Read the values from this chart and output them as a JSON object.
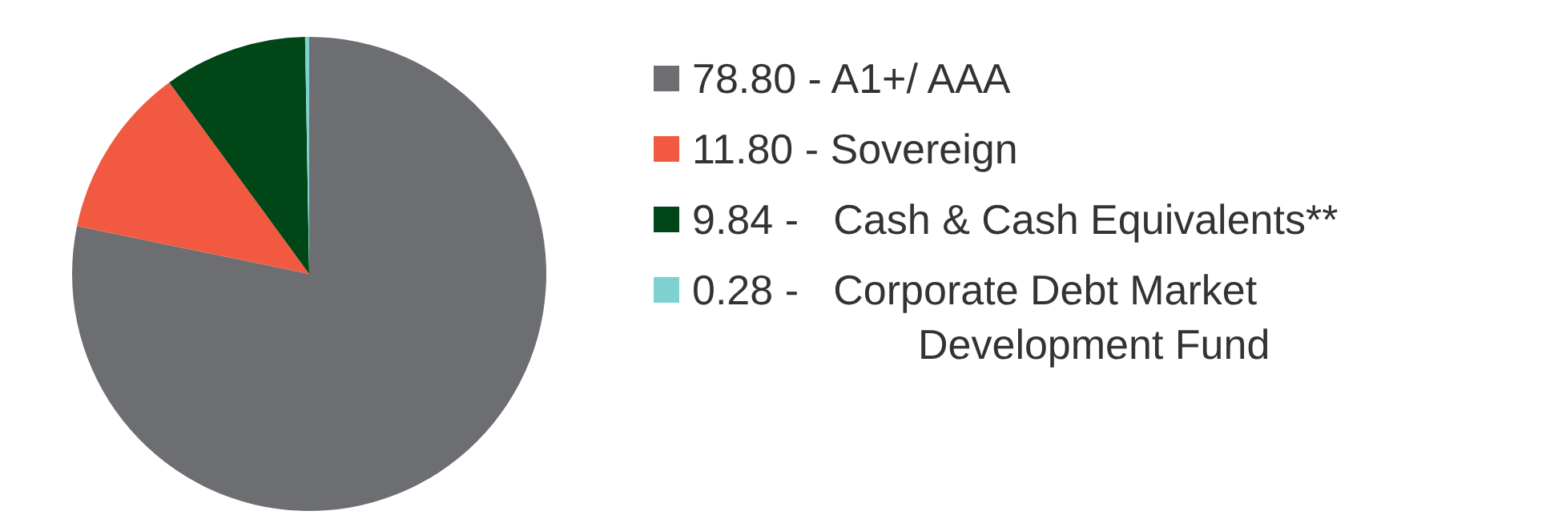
{
  "chart_data": {
    "type": "pie",
    "categories": [
      "78.80 - A1+/ AAA",
      "11.80 - Sovereign",
      "9.84 -   Cash & Cash Equivalents**",
      "0.28 -   Corporate Debt Market Development Fund"
    ],
    "values": [
      78.8,
      11.8,
      9.84,
      0.28
    ],
    "colors": [
      "#6d6e71",
      "#f15a40",
      "#004616",
      "#7fd1d1"
    ],
    "legend": "right"
  }
}
